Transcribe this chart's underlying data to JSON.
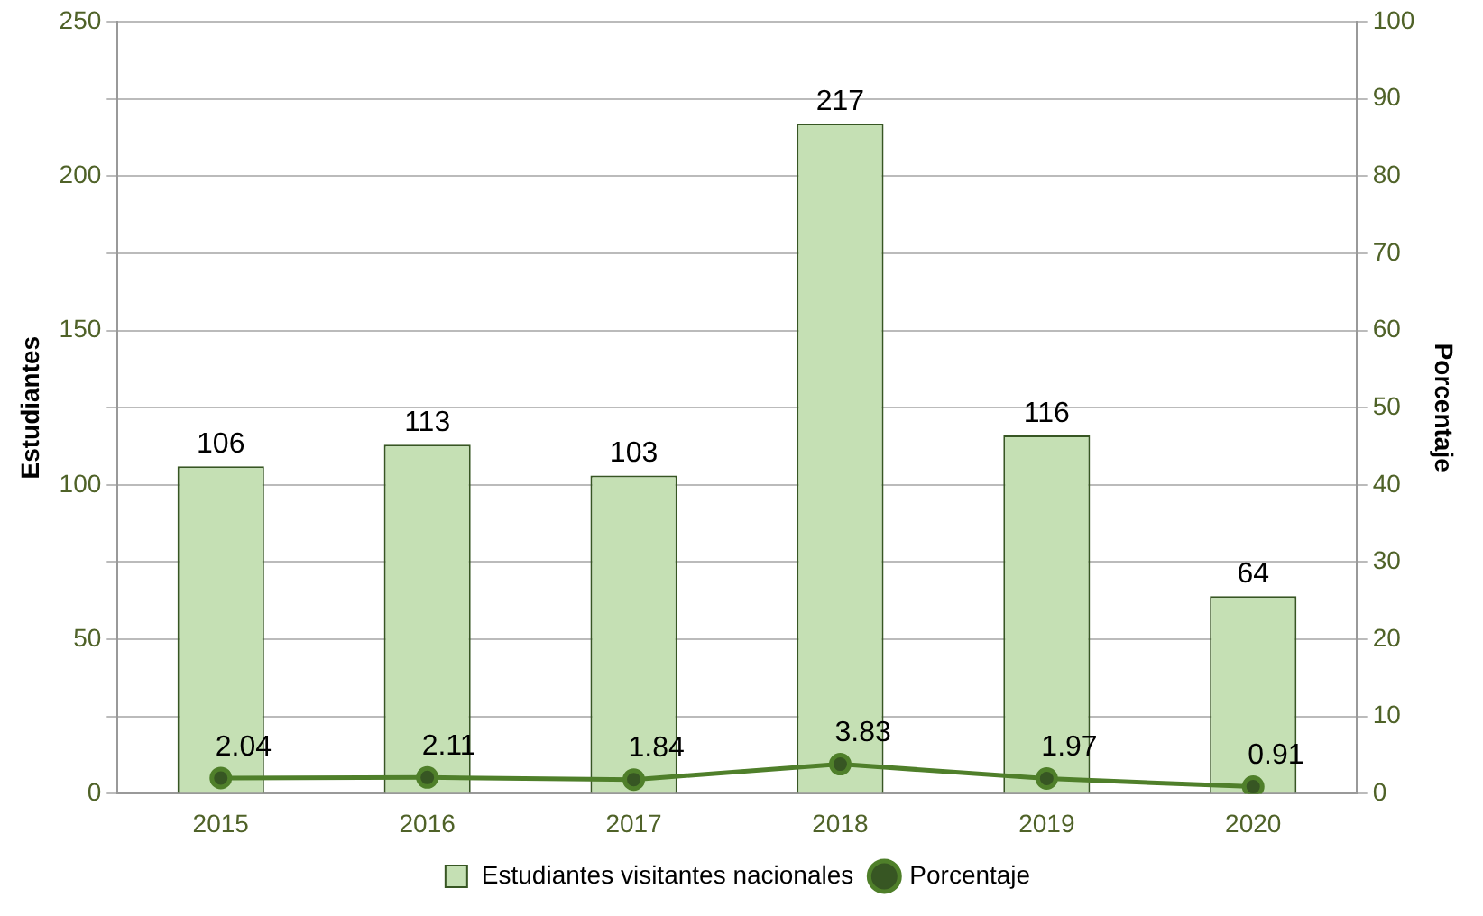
{
  "chart_data": {
    "type": "bar",
    "ylabel": "Estudiantes",
    "y2label": "Porcentaje",
    "categories": [
      "2015",
      "2016",
      "2017",
      "2018",
      "2019",
      "2020"
    ],
    "series": [
      {
        "name": "Estudiantes visitantes nacionales",
        "color": "#c5e0b4",
        "values": [
          106,
          113,
          103,
          217,
          116,
          64
        ]
      },
      {
        "name": "Porcentaje",
        "type": "line",
        "axis": "y2",
        "color": "#4f7f2a",
        "marker": "circle",
        "values": [
          2.04,
          2.11,
          1.84,
          3.83,
          1.97,
          0.91
        ]
      }
    ],
    "ylim": [
      0,
      250
    ],
    "yticks": [
      0,
      {
        "value": 25,
        "label": null
      },
      50,
      {
        "value": 75,
        "label": null
      },
      100,
      {
        "value": 125,
        "label": null
      },
      150,
      {
        "value": 175,
        "label": null
      },
      200,
      {
        "value": 225,
        "label": null
      },
      250
    ],
    "y2lim": [
      0,
      100
    ],
    "y2ticks": [
      0,
      10,
      20,
      30,
      40,
      50,
      60,
      70,
      80,
      90,
      100
    ],
    "grid": "y2",
    "legend": "bottom",
    "data_labels": true
  }
}
